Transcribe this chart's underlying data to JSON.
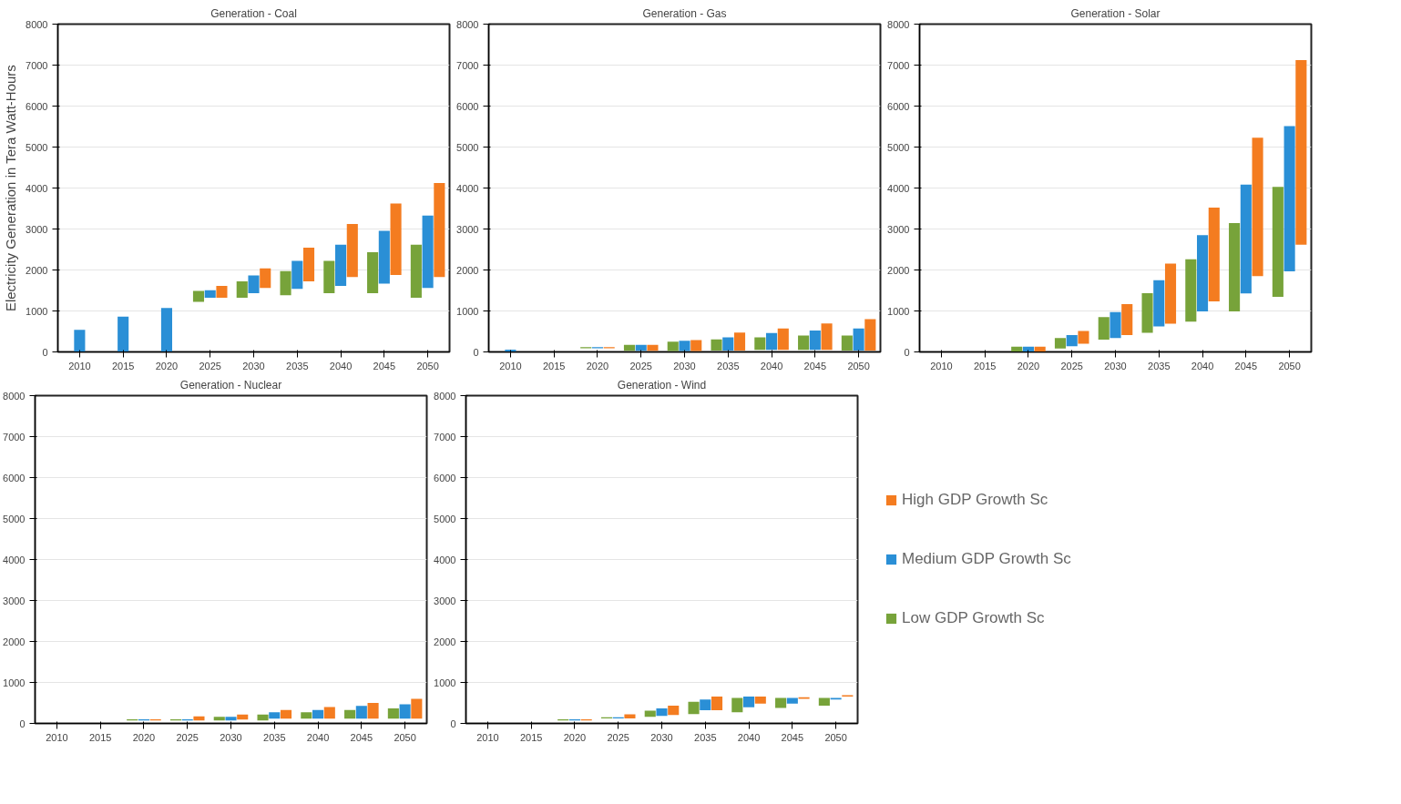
{
  "chart_data": [
    {
      "type": "bar",
      "title": "Generation - Coal",
      "ylabel": "Electricity Generation in Tera Watt-Hours",
      "categories": [
        "2010",
        "2015",
        "2020",
        "2025",
        "2030",
        "2035",
        "2040",
        "2045",
        "2050"
      ],
      "ylim": [
        0,
        8000
      ],
      "yticks": [
        0,
        1000,
        2000,
        3000,
        4000,
        5000,
        6000,
        7000,
        8000
      ],
      "grid": "y",
      "series": [
        {
          "color": "#77a33a",
          "base": [
            null,
            null,
            null,
            1220,
            1325,
            1385,
            1435,
            1435,
            1325
          ],
          "values": [
            null,
            null,
            null,
            270,
            395,
            585,
            785,
            1000,
            1290
          ]
        },
        {
          "color": "#2a8fd6",
          "base": [
            0,
            0,
            0,
            1325,
            1435,
            1540,
            1610,
            1665,
            1560
          ],
          "values": [
            540,
            860,
            1075,
            180,
            430,
            680,
            1005,
            1290,
            1770
          ]
        },
        {
          "color": "#f47c20",
          "base": [
            null,
            null,
            null,
            1325,
            1560,
            1720,
            1830,
            1880,
            1830
          ],
          "values": [
            null,
            null,
            null,
            285,
            480,
            825,
            1290,
            1740,
            2290
          ]
        }
      ]
    },
    {
      "type": "bar",
      "title": "Generation - Gas",
      "categories": [
        "2010",
        "2015",
        "2020",
        "2025",
        "2030",
        "2035",
        "2040",
        "2045",
        "2050"
      ],
      "ylim": [
        0,
        8000
      ],
      "yticks": [
        0,
        1000,
        2000,
        3000,
        4000,
        5000,
        6000,
        7000,
        8000
      ],
      "grid": "y",
      "series": [
        {
          "color": "#77a33a",
          "base": [
            null,
            null,
            90,
            30,
            20,
            35,
            50,
            50,
            35
          ],
          "values": [
            null,
            null,
            25,
            145,
            230,
            270,
            305,
            350,
            365
          ]
        },
        {
          "color": "#2a8fd6",
          "base": [
            0,
            null,
            90,
            30,
            20,
            35,
            50,
            50,
            35
          ],
          "values": [
            55,
            null,
            25,
            145,
            250,
            320,
            410,
            470,
            535
          ]
        },
        {
          "color": "#f47c20",
          "base": [
            null,
            null,
            90,
            30,
            20,
            35,
            50,
            50,
            35
          ],
          "values": [
            null,
            null,
            25,
            145,
            270,
            435,
            525,
            645,
            765
          ]
        }
      ]
    },
    {
      "type": "bar",
      "title": "Generation - Solar",
      "categories": [
        "2010",
        "2015",
        "2020",
        "2025",
        "2030",
        "2035",
        "2040",
        "2045",
        "2050"
      ],
      "ylim": [
        0,
        8000
      ],
      "yticks": [
        0,
        1000,
        2000,
        3000,
        4000,
        5000,
        6000,
        7000,
        8000
      ],
      "grid": "y",
      "series": [
        {
          "color": "#77a33a",
          "base": [
            null,
            null,
            0,
            85,
            300,
            465,
            740,
            990,
            1345
          ],
          "values": [
            null,
            null,
            130,
            255,
            550,
            970,
            1520,
            2155,
            2685
          ]
        },
        {
          "color": "#2a8fd6",
          "base": [
            null,
            null,
            0,
            140,
            340,
            620,
            990,
            1430,
            1965
          ],
          "values": [
            null,
            null,
            130,
            270,
            635,
            1130,
            1860,
            2655,
            3545
          ]
        },
        {
          "color": "#f47c20",
          "base": [
            null,
            null,
            0,
            200,
            410,
            690,
            1235,
            1850,
            2615
          ],
          "values": [
            null,
            null,
            130,
            310,
            755,
            1465,
            2285,
            3380,
            4510
          ]
        }
      ]
    },
    {
      "type": "bar",
      "title": "Generation - Nuclear",
      "categories": [
        "2010",
        "2015",
        "2020",
        "2025",
        "2030",
        "2035",
        "2040",
        "2045",
        "2050"
      ],
      "ylim": [
        0,
        8000
      ],
      "yticks": [
        0,
        1000,
        2000,
        3000,
        4000,
        5000,
        6000,
        7000,
        8000
      ],
      "grid": "y",
      "series": [
        {
          "color": "#77a33a",
          "base": [
            null,
            null,
            75,
            75,
            75,
            75,
            115,
            115,
            115
          ],
          "values": [
            null,
            null,
            25,
            25,
            85,
            140,
            160,
            215,
            250
          ]
        },
        {
          "color": "#2a8fd6",
          "base": [
            null,
            null,
            75,
            75,
            75,
            115,
            115,
            115,
            115
          ],
          "values": [
            null,
            null,
            25,
            25,
            85,
            160,
            215,
            315,
            350
          ]
        },
        {
          "color": "#f47c20",
          "base": [
            null,
            null,
            75,
            75,
            95,
            115,
            115,
            115,
            115
          ],
          "values": [
            null,
            null,
            25,
            100,
            120,
            215,
            285,
            385,
            485
          ]
        }
      ]
    },
    {
      "type": "bar",
      "title": "Generation - Wind",
      "categories": [
        "2010",
        "2015",
        "2020",
        "2025",
        "2030",
        "2035",
        "2040",
        "2045",
        "2050"
      ],
      "ylim": [
        0,
        8000
      ],
      "yticks": [
        0,
        1000,
        2000,
        3000,
        4000,
        5000,
        6000,
        7000,
        8000
      ],
      "grid": "y",
      "legend": "right",
      "series": [
        {
          "name": "Low GDP Growth Sc",
          "color": "#77a33a",
          "base": [
            null,
            null,
            70,
            120,
            160,
            230,
            275,
            380,
            435
          ],
          "values": [
            null,
            null,
            30,
            30,
            150,
            300,
            345,
            240,
            185
          ]
        },
        {
          "name": "Medium GDP Growth Sc",
          "color": "#2a8fd6",
          "base": [
            null,
            null,
            70,
            120,
            185,
            325,
            395,
            485,
            585
          ],
          "values": [
            null,
            null,
            30,
            30,
            180,
            260,
            260,
            135,
            35
          ]
        },
        {
          "name": "High GDP Growth Sc",
          "color": "#f47c20",
          "base": [
            null,
            null,
            70,
            120,
            205,
            325,
            485,
            600,
            655
          ],
          "values": [
            null,
            null,
            30,
            100,
            230,
            330,
            170,
            40,
            35
          ]
        }
      ]
    }
  ]
}
